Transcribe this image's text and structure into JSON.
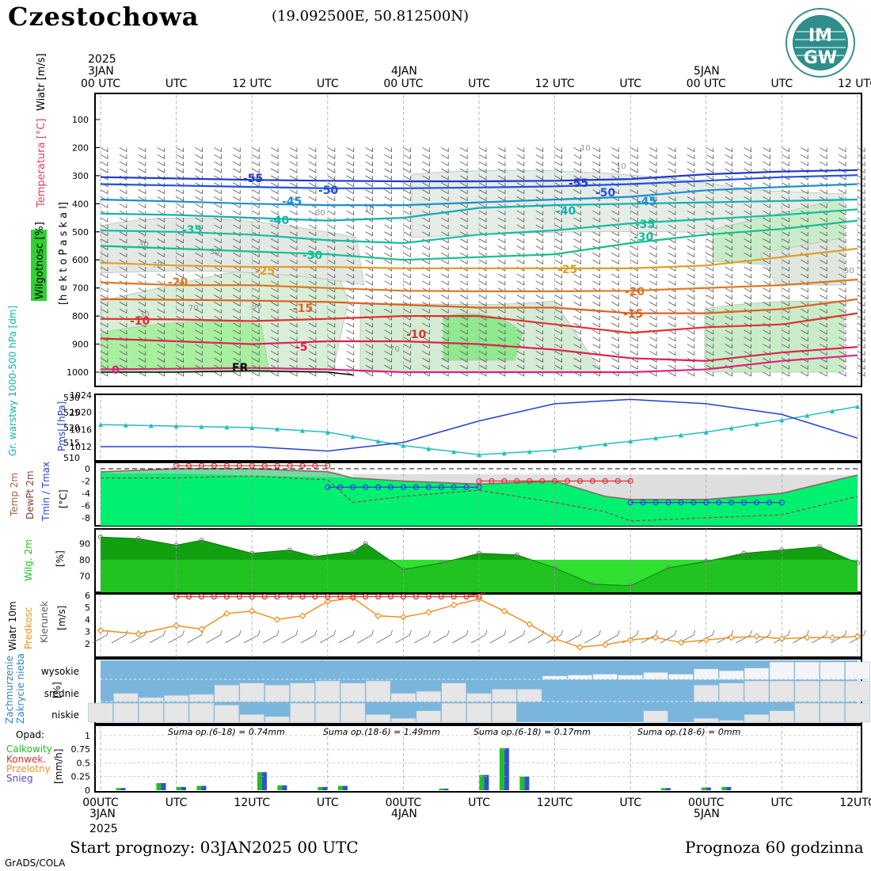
{
  "header": {
    "station": "Czestochowa",
    "coords": "(19.092500E, 50.812500N)",
    "logo_top": "IM",
    "logo_bottom": "GW"
  },
  "time_axis": {
    "top_labels": [
      "00 UTC",
      "UTC",
      "12 UTC",
      "UTC",
      "00 UTC",
      "UTC",
      "12 UTC",
      "UTC",
      "00 UTC",
      "UTC",
      "12 UTC"
    ],
    "bottom_labels": [
      "00UTC",
      "UTC",
      "12UTC",
      "UTC",
      "00UTC",
      "UTC",
      "12UTC",
      "UTC",
      "00UTC",
      "UTC",
      "12UTC"
    ],
    "dates": [
      {
        "label": "3JAN",
        "year": "2025"
      },
      {
        "label": "4JAN",
        "year": ""
      },
      {
        "label": "5JAN",
        "year": ""
      }
    ]
  },
  "panel_labels": {
    "upper": [
      "Wiatr [m/s]",
      "Temperatura [°C]",
      "Wilgotnosc [%]",
      "[h e k t o P a s k a l]"
    ],
    "pressure": [
      "Gr. warstwy 1000-500 hPa [dm]",
      "Pmsl [hPa]"
    ],
    "temp": [
      "Temp 2m",
      "DewPt 2m",
      "Tmin / Tmax",
      "[°C]"
    ],
    "rh": [
      "Wilg. 2m",
      "[%]"
    ],
    "wind": [
      "Wiatr 10m",
      "Predkosc",
      "Kierunek",
      "[m/s]"
    ],
    "cloud": [
      "Zachmurzenie",
      "Zakrycie nieba",
      "[%]"
    ],
    "precip": [
      "Opad:",
      "Calkowity",
      "Konwek.",
      "Przelotny",
      "Snieg",
      "[mm/h]"
    ]
  },
  "cloud_levels": [
    "wysokie",
    "srednie",
    "niskie"
  ],
  "precip_sums": [
    "Suma op.(6-18) = 0.74mm",
    "Suma op.(18-6) = 1.49mm",
    "Suma op.(6-18) = 0.17mm",
    "Suma op.(18-6) = 0mm"
  ],
  "footer": {
    "start": "Start prognozy: 03JAN2025 00 UTC",
    "range": "Prognoza 60 godzinna",
    "credit": "GrADS/COLA"
  },
  "colors": {
    "temp_area": "#00f070",
    "rh_dark": "#10a010",
    "rh_light": "#20d020",
    "cloud_blue": "#7ab5dc",
    "gpm_line": "#20c0c0",
    "pmsl_line": "#2040d0",
    "wind_speed": "#f09020",
    "tmax": "#e03030",
    "tmin": "#3040e0"
  },
  "chart_data": [
    {
      "type": "line",
      "title": "",
      "ylabel": "[hektoPaskal]",
      "y_ticks": [
        100,
        200,
        300,
        400,
        500,
        600,
        700,
        800,
        900,
        1000
      ],
      "ylim": [
        1050,
        50
      ],
      "x_hours": [
        0,
        60
      ],
      "isotherm_labels": [
        "-55",
        "-50",
        "-55",
        "-50",
        "-45",
        "-45",
        "-40",
        "-40",
        "-35",
        "-35",
        "-30",
        "-30",
        "-25",
        "-25",
        "-20",
        "-20",
        "-15",
        "-15",
        "-10",
        "-10",
        "-5",
        "0",
        "FR"
      ],
      "rh_labels": [
        "10",
        "10",
        "10",
        "30",
        "30",
        "30",
        "30",
        "50",
        "70",
        "70",
        "70",
        "90"
      ],
      "isotherms": [
        {
          "temp": -55,
          "color": "#2038d0",
          "x": [
            0,
            6,
            12,
            18,
            24,
            30,
            36,
            42,
            48,
            54,
            60
          ],
          "y": [
            305,
            310,
            315,
            318,
            320,
            320,
            318,
            312,
            295,
            285,
            280
          ]
        },
        {
          "temp": -50,
          "color": "#2050e0",
          "x": [
            0,
            6,
            12,
            18,
            24,
            30,
            36,
            42,
            48,
            54,
            60
          ],
          "y": [
            330,
            335,
            340,
            345,
            345,
            342,
            338,
            330,
            318,
            305,
            298
          ]
        },
        {
          "temp": -45,
          "color": "#1890d0",
          "x": [
            0,
            6,
            12,
            18,
            24,
            30,
            36,
            42,
            48,
            54,
            60
          ],
          "y": [
            385,
            392,
            400,
            405,
            405,
            395,
            385,
            375,
            352,
            340,
            330
          ]
        },
        {
          "temp": -40,
          "color": "#10b0b0",
          "x": [
            0,
            6,
            12,
            18,
            24,
            30,
            36,
            42,
            48,
            54,
            60
          ],
          "y": [
            435,
            440,
            450,
            460,
            450,
            415,
            405,
            400,
            395,
            390,
            385
          ]
        },
        {
          "temp": -35,
          "color": "#10c0a0",
          "x": [
            0,
            6,
            12,
            18,
            24,
            30,
            36,
            42,
            48,
            54,
            60
          ],
          "y": [
            495,
            500,
            510,
            530,
            540,
            510,
            495,
            470,
            455,
            440,
            420
          ]
        },
        {
          "temp": -30,
          "color": "#10c090",
          "x": [
            0,
            6,
            12,
            18,
            24,
            30,
            36,
            42,
            48,
            54,
            60
          ],
          "y": [
            550,
            560,
            570,
            580,
            600,
            590,
            580,
            540,
            510,
            490,
            460
          ]
        },
        {
          "temp": -25,
          "color": "#e0a020",
          "x": [
            0,
            6,
            12,
            18,
            24,
            30,
            36,
            42,
            48,
            54,
            60
          ],
          "y": [
            610,
            620,
            625,
            625,
            630,
            630,
            630,
            630,
            620,
            590,
            560
          ]
        },
        {
          "temp": -20,
          "color": "#e07820",
          "x": [
            0,
            6,
            12,
            18,
            24,
            30,
            36,
            42,
            48,
            54,
            60
          ],
          "y": [
            680,
            690,
            690,
            700,
            710,
            712,
            712,
            710,
            700,
            690,
            670
          ]
        },
        {
          "temp": -15,
          "color": "#e06020",
          "x": [
            0,
            6,
            12,
            18,
            24,
            30,
            36,
            42,
            48,
            54,
            60
          ],
          "y": [
            740,
            742,
            745,
            750,
            760,
            770,
            770,
            790,
            790,
            775,
            740
          ]
        },
        {
          "temp": -10,
          "color": "#e03030",
          "x": [
            0,
            6,
            12,
            18,
            24,
            30,
            36,
            42,
            48,
            54,
            60
          ],
          "y": [
            810,
            812,
            818,
            810,
            800,
            800,
            830,
            860,
            840,
            830,
            790
          ]
        },
        {
          "temp": -5,
          "color": "#e02050",
          "x": [
            0,
            6,
            12,
            18,
            24,
            30,
            36,
            42,
            48,
            54,
            60
          ],
          "y": [
            880,
            890,
            900,
            890,
            890,
            900,
            920,
            950,
            960,
            930,
            910
          ]
        },
        {
          "temp": 0,
          "color": "#e02080",
          "x": [
            0,
            6,
            12,
            18,
            24,
            30,
            36,
            42,
            48,
            54,
            60
          ],
          "y": [
            990,
            988,
            985,
            990,
            1000,
            1000,
            1000,
            1000,
            990,
            960,
            940
          ]
        }
      ]
    },
    {
      "type": "line",
      "title": "",
      "series": [
        {
          "name": "Gr. warstwy 1000-500 hPa [dm]",
          "x": [
            0,
            6,
            12,
            18,
            24,
            30,
            36,
            42,
            48,
            54,
            60
          ],
          "values": [
            521,
            520.5,
            520,
            518.5,
            514,
            511,
            512.5,
            515.5,
            518.5,
            522.5,
            527
          ],
          "ylim": [
            510,
            530
          ],
          "ticks": [
            510,
            515,
            520,
            525,
            530
          ]
        },
        {
          "name": "Pmsl [hPa]",
          "x": [
            0,
            6,
            12,
            18,
            24,
            30,
            36,
            42,
            48,
            54,
            60
          ],
          "values": [
            1012,
            1012,
            1012,
            1011,
            1013,
            1018,
            1022,
            1023,
            1022,
            1019.5,
            1014
          ],
          "ylim": [
            1010,
            1024
          ],
          "ticks": [
            1012,
            1016,
            1020,
            1024
          ]
        }
      ]
    },
    {
      "type": "area",
      "title": "",
      "ylim": [
        -10,
        0.5
      ],
      "y_ticks": [
        0,
        -2,
        -4,
        -6,
        -8
      ],
      "series": [
        {
          "name": "Temp 2m",
          "x": [
            0,
            6,
            12,
            18,
            20,
            24,
            30,
            36,
            40,
            42,
            48,
            54,
            60
          ],
          "values": [
            -0.5,
            0,
            0,
            -0.5,
            -1.5,
            -2,
            -2.5,
            -2,
            -4.5,
            -5,
            -5,
            -4,
            -1
          ]
        },
        {
          "name": "DewPt 2m",
          "x": [
            0,
            6,
            12,
            18,
            20,
            24,
            30,
            36,
            40,
            42,
            48,
            54,
            60
          ],
          "values": [
            -1.5,
            -1.5,
            -1.2,
            -1.8,
            -5.5,
            -4.5,
            -3.5,
            -5.5,
            -7,
            -8.5,
            -8,
            -7.5,
            -4.5
          ]
        },
        {
          "name": "Tmax",
          "x": [
            6,
            18
          ],
          "values": [
            0.5,
            0.5
          ]
        },
        {
          "name": "Tmax",
          "x": [
            30,
            42
          ],
          "values": [
            -2,
            -2
          ]
        },
        {
          "name": "Tmin",
          "x": [
            18,
            30
          ],
          "values": [
            -3,
            -3
          ]
        },
        {
          "name": "Tmin",
          "x": [
            42,
            54
          ],
          "values": [
            -5.5,
            -5.5
          ]
        }
      ]
    },
    {
      "type": "area",
      "title": "",
      "ylim": [
        60,
        98
      ],
      "y_ticks": [
        90,
        80,
        70
      ],
      "series": [
        {
          "name": "Wilg. 2m",
          "x": [
            0,
            3,
            6,
            8,
            12,
            15,
            17,
            20,
            21,
            24,
            27,
            30,
            33,
            36,
            39,
            42,
            45,
            48,
            51,
            54,
            57,
            60
          ],
          "values": [
            94,
            93,
            89,
            92,
            84,
            86,
            82,
            85,
            90,
            74,
            78,
            84,
            83,
            75,
            65,
            64,
            75,
            79,
            84,
            86,
            88,
            78
          ]
        }
      ]
    },
    {
      "type": "line",
      "title": "",
      "ylim": [
        1,
        6
      ],
      "y_ticks": [
        2,
        3,
        4,
        5,
        6
      ],
      "series": [
        {
          "name": "Predkosc",
          "x": [
            0,
            3,
            6,
            8,
            10,
            12,
            14,
            16,
            18,
            20,
            22,
            24,
            26,
            28,
            30,
            32,
            34,
            36,
            38,
            40,
            42,
            44,
            46,
            48,
            50,
            52,
            54,
            56,
            58,
            60
          ],
          "values": [
            3.1,
            2.8,
            3.5,
            3.2,
            4.5,
            4.7,
            4.0,
            4.3,
            5.5,
            5.8,
            4.3,
            4.2,
            4.6,
            5.2,
            5.7,
            4.7,
            3.6,
            2.4,
            1.7,
            1.9,
            2.3,
            2.5,
            2.1,
            2.3,
            2.5,
            2.6,
            2.4,
            2.5,
            2.5,
            2.6
          ]
        },
        {
          "name": "Max",
          "x": [
            6,
            30
          ],
          "values": [
            5.9,
            5.9
          ]
        }
      ]
    },
    {
      "type": "bar",
      "title": "",
      "categories": [
        "wysokie",
        "srednie",
        "niskie"
      ],
      "ylim": [
        0,
        100
      ],
      "series": [
        {
          "name": "wysokie",
          "x": [
            36,
            38,
            40,
            42,
            44,
            46,
            48,
            50,
            52,
            54,
            56,
            58,
            60
          ],
          "values": [
            20,
            25,
            30,
            25,
            40,
            30,
            60,
            50,
            65,
            100,
            100,
            100,
            100
          ]
        },
        {
          "name": "srednie",
          "x": [
            2,
            4,
            6,
            8,
            10,
            12,
            14,
            16,
            18,
            20,
            22,
            24,
            26,
            28,
            30,
            32,
            34,
            48,
            50,
            52,
            54,
            56,
            58,
            60
          ],
          "values": [
            40,
            20,
            30,
            35,
            80,
            90,
            80,
            90,
            100,
            90,
            100,
            40,
            50,
            90,
            40,
            60,
            60,
            80,
            90,
            100,
            100,
            100,
            100,
            100
          ]
        },
        {
          "name": "niskie",
          "x": [
            0,
            2,
            4,
            6,
            8,
            10,
            12,
            14,
            16,
            18,
            20,
            22,
            24,
            26,
            28,
            30,
            32,
            34,
            36,
            38,
            40,
            42,
            44,
            46,
            48,
            50,
            52,
            54,
            56,
            58,
            60
          ],
          "values": [
            100,
            100,
            100,
            100,
            100,
            90,
            40,
            30,
            100,
            100,
            100,
            40,
            20,
            60,
            100,
            100,
            100,
            0,
            0,
            0,
            0,
            0,
            60,
            0,
            20,
            10,
            40,
            60,
            100,
            100,
            100
          ]
        }
      ]
    },
    {
      "type": "bar",
      "title": "",
      "ylabel": "[mm/h]",
      "ylim": [
        0,
        1.1
      ],
      "y_ticks": [
        0,
        0.25,
        0.5,
        0.75,
        1
      ],
      "series": [
        {
          "name": "Calkowity",
          "x": [
            1,
            3,
            4,
            5,
            8,
            9,
            11,
            12,
            17,
            19,
            20,
            21,
            28,
            30,
            31
          ],
          "values": [
            0.04,
            0.13,
            0.06,
            0.08,
            0.33,
            0.09,
            0.06,
            0.08,
            0.03,
            0.28,
            0.77,
            0.25,
            0.04,
            0.05,
            0.06
          ]
        }
      ]
    }
  ]
}
